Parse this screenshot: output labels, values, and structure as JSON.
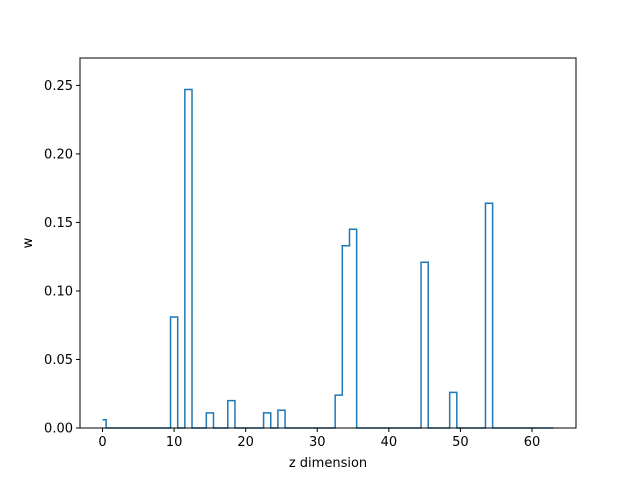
{
  "chart_data": {
    "type": "line",
    "drawstyle": "steps",
    "title": "",
    "xlabel": "z dimension",
    "ylabel": "w",
    "xlim": [
      -3.15,
      66.15
    ],
    "ylim": [
      0,
      0.27
    ],
    "xticks": [
      0,
      10,
      20,
      30,
      40,
      50,
      60
    ],
    "yticks": [
      0.0,
      0.05,
      0.1,
      0.15,
      0.2,
      0.25
    ],
    "ytick_labels": [
      "0.00",
      "0.05",
      "0.10",
      "0.15",
      "0.20",
      "0.25"
    ],
    "grid": false,
    "line_color": "#1f77b4",
    "series": [
      {
        "x": [
          0,
          1,
          2,
          3,
          4,
          5,
          6,
          7,
          8,
          9,
          10,
          11,
          12,
          13,
          14,
          15,
          16,
          17,
          18,
          19,
          20,
          21,
          22,
          23,
          24,
          25,
          26,
          27,
          28,
          29,
          30,
          31,
          32,
          33,
          34,
          35,
          36,
          37,
          38,
          39,
          40,
          41,
          42,
          43,
          44,
          45,
          46,
          47,
          48,
          49,
          50,
          51,
          52,
          53,
          54,
          55,
          56,
          57,
          58,
          59,
          60,
          61,
          62,
          63
        ],
        "values": [
          0.006,
          0,
          0,
          0,
          0,
          0,
          0,
          0,
          0,
          0,
          0.081,
          0,
          0.247,
          0,
          0,
          0.011,
          0,
          0,
          0.02,
          0,
          0,
          0,
          0,
          0.011,
          0,
          0.013,
          0,
          0,
          0,
          0,
          0,
          0,
          0,
          0.024,
          0.133,
          0.145,
          0,
          0,
          0,
          0,
          0,
          0,
          0,
          0,
          0,
          0.121,
          0,
          0,
          0,
          0.026,
          0,
          0,
          0,
          0,
          0.164,
          0,
          0,
          0,
          0,
          0,
          0,
          0,
          0,
          0
        ]
      }
    ]
  }
}
